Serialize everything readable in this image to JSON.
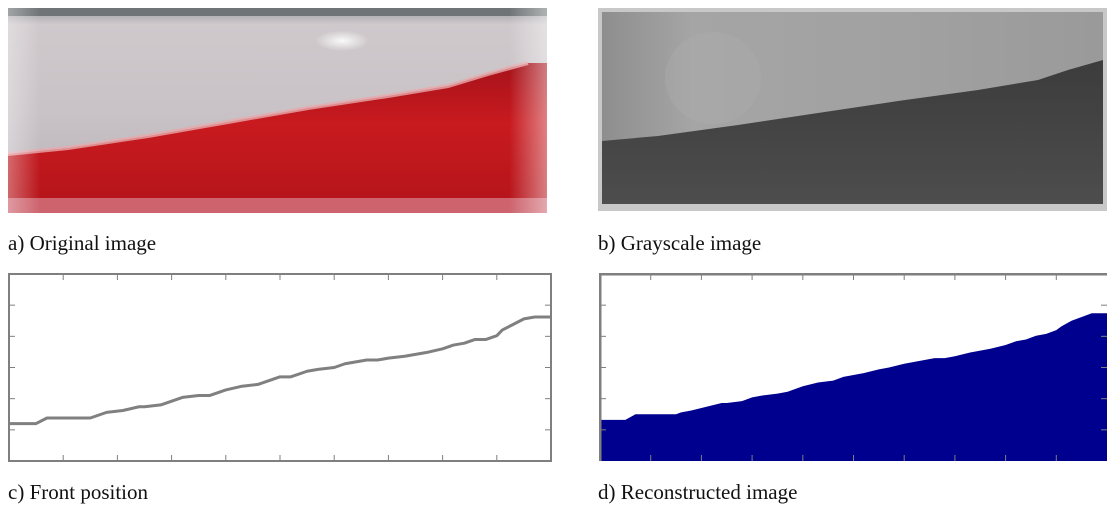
{
  "figure": {
    "panels": [
      {
        "id": "a",
        "caption": "a) Original image"
      },
      {
        "id": "b",
        "caption": "b) Grayscale image"
      },
      {
        "id": "c",
        "caption": "c) Front position"
      },
      {
        "id": "d",
        "caption": "d) Reconstructed image"
      }
    ]
  },
  "colors": {
    "red_liquid": "#c41a1c",
    "gray_upper": "#a6a6a6",
    "gray_lower": "#474747",
    "front_line": "#808080",
    "reconstructed_fill": "#00008f",
    "axes_frame": "#7f7f7f"
  },
  "chart_data": [
    {
      "type": "line",
      "panel": "c",
      "title": "",
      "xlabel": "",
      "ylabel": "",
      "xlim": [
        0,
        100
      ],
      "ylim": [
        0,
        100
      ],
      "grid": false,
      "series": [
        {
          "x": [
            0,
            5,
            7,
            9,
            15,
            16,
            18,
            21,
            24,
            25,
            28,
            30,
            32,
            35,
            37,
            40,
            43,
            46,
            48,
            50,
            52,
            55,
            57,
            60,
            62,
            64,
            66,
            68,
            70,
            73,
            75,
            77,
            80,
            82,
            84,
            86,
            88,
            90,
            91,
            93,
            95,
            97,
            100
          ],
          "y": [
            20,
            20,
            23,
            23,
            23,
            24,
            26,
            27,
            29,
            29,
            30,
            32,
            34,
            35,
            35,
            38,
            40,
            41,
            43,
            45,
            45,
            48,
            49,
            50,
            52,
            53,
            54,
            54,
            55,
            56,
            57,
            58,
            60,
            62,
            63,
            65,
            65,
            67,
            70,
            73,
            76,
            77,
            77
          ]
        }
      ]
    },
    {
      "type": "area",
      "panel": "d",
      "title": "",
      "xlabel": "",
      "ylabel": "",
      "xlim": [
        0,
        100
      ],
      "ylim": [
        0,
        100
      ],
      "grid": false,
      "series": [
        {
          "x": [
            0,
            5,
            7,
            9,
            15,
            16,
            18,
            21,
            24,
            25,
            28,
            30,
            32,
            35,
            37,
            40,
            43,
            46,
            48,
            50,
            52,
            55,
            57,
            60,
            62,
            64,
            66,
            68,
            70,
            73,
            75,
            77,
            80,
            82,
            84,
            86,
            88,
            90,
            91,
            93,
            95,
            97,
            100
          ],
          "y": [
            22,
            22,
            25,
            25,
            25,
            26,
            27,
            29,
            31,
            31,
            32,
            34,
            35,
            36,
            37,
            40,
            42,
            43,
            45,
            46,
            47,
            49,
            50,
            52,
            53,
            54,
            55,
            55,
            56,
            58,
            59,
            60,
            62,
            64,
            65,
            67,
            68,
            70,
            72,
            75,
            77,
            79,
            79
          ]
        }
      ]
    }
  ]
}
